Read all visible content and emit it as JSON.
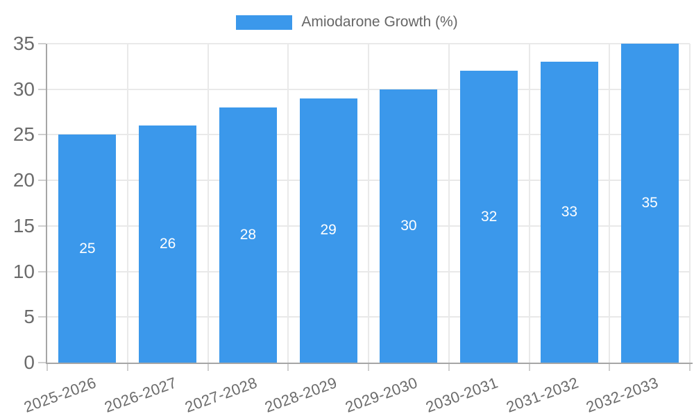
{
  "chart_data": {
    "type": "bar",
    "title": "",
    "legend": {
      "label": "Amiodarone Growth (%)",
      "position": "top"
    },
    "categories": [
      "2025-2026",
      "2026-2027",
      "2027-2028",
      "2028-2029",
      "2029-2030",
      "2030-2031",
      "2031-2032",
      "2032-2033"
    ],
    "series": [
      {
        "name": "Amiodarone Growth (%)",
        "values": [
          25,
          26,
          28,
          29,
          30,
          32,
          33,
          35
        ]
      }
    ],
    "xlabel": "",
    "ylabel": "",
    "ylim": [
      0,
      35
    ],
    "yticks": [
      0,
      5,
      10,
      15,
      20,
      25,
      30,
      35
    ],
    "grid": true,
    "x_label_rotation_deg": -20,
    "value_label_position": "inside-center",
    "colors": {
      "bar": "#3B98EB",
      "value_label": "#FFFFFF",
      "grid": "#E9E9E9",
      "axis": "#A6A6A6",
      "tick": "#CFCFCF",
      "text": "#6B6B6B",
      "legend_text": "#666666"
    }
  }
}
